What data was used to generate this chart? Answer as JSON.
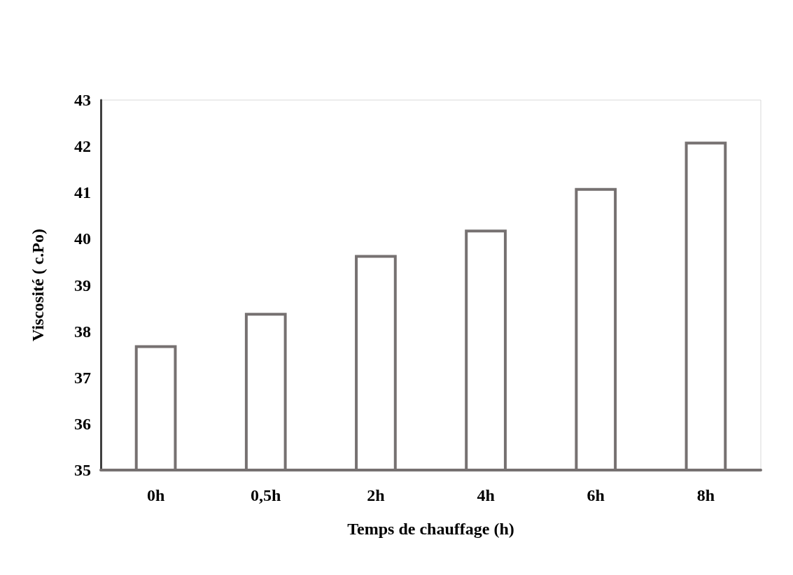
{
  "chart_data": {
    "type": "bar",
    "xlabel": "Temps de chauffage (h)",
    "ylabel": "Viscosité ( c.Po)",
    "categories": [
      "0h",
      "0,5h",
      "2h",
      "4h",
      "6h",
      "8h"
    ],
    "values": [
      37.7,
      38.4,
      39.65,
      40.2,
      41.1,
      42.1
    ],
    "color": "#767171",
    "ylim": [
      35,
      43
    ],
    "yticks": [
      35,
      36,
      37,
      38,
      39,
      40,
      41,
      42,
      43
    ],
    "grid": false
  }
}
